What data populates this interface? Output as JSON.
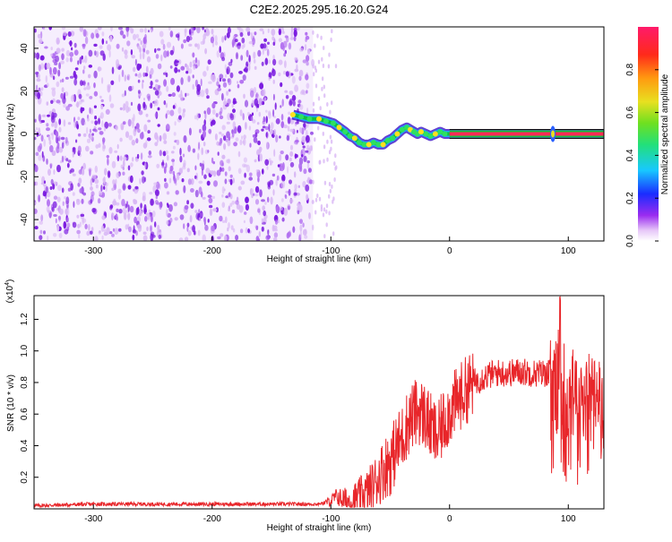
{
  "title": "C2E2.2025.295.16.20.G24",
  "colors": {
    "axis": "#000000",
    "snr_line": "#e8262a",
    "spectrum_light": "#d9b8f5",
    "spectrum_dark": "#7a1ae0",
    "track_center": "#ff2a55",
    "track_edge": "#10c040"
  },
  "chart_data": [
    {
      "type": "heatmap",
      "name": "spectrogram",
      "xlabel": "Height of straight line (km)",
      "ylabel": "Frequency (Hz)",
      "xlim": [
        -350,
        130
      ],
      "ylim": [
        -50,
        50
      ],
      "xticks": [
        -300,
        -200,
        -100,
        0,
        100
      ],
      "xtick_labels": [
        "-300",
        "-200",
        "-100",
        "0",
        "100"
      ],
      "yticks": [
        -40,
        -20,
        0,
        20,
        40
      ],
      "ytick_labels": [
        "-40",
        "-20",
        "0",
        "20",
        "40"
      ],
      "noise_region_x": [
        -350,
        -115
      ],
      "sparse_noise_x": [
        -115,
        -95
      ],
      "signal_track": {
        "x": [
          -132,
          -125,
          -118,
          -110,
          -104,
          -98,
          -93,
          -88,
          -84,
          -80,
          -76,
          -72,
          -68,
          -64,
          -60,
          -56,
          -52,
          -48,
          -44,
          -40,
          -36,
          -33,
          -30,
          -27,
          -24,
          -20,
          -16,
          -12,
          -8,
          -4,
          0,
          130
        ],
        "y": [
          9,
          8,
          7,
          7,
          6,
          5,
          3,
          1,
          -1,
          -2,
          -4,
          -5,
          -5,
          -4,
          -5,
          -5,
          -3,
          -2,
          0,
          2,
          3,
          2,
          1,
          0,
          1,
          0,
          -1,
          0,
          1,
          0,
          0,
          0
        ]
      },
      "spike": {
        "x": 87,
        "y": 0
      },
      "colorbar": {
        "label": "Normalized spectral amplitude",
        "range": [
          0,
          1
        ],
        "ticks": [
          0.0,
          0.2,
          0.4,
          0.6,
          0.8
        ],
        "tick_labels": [
          "0.0",
          "0.2",
          "0.4",
          "0.6",
          "0.8"
        ]
      }
    },
    {
      "type": "line",
      "name": "snr",
      "xlabel": "Height of straight line (km)",
      "ylabel": "SNR (10 * v/v)",
      "multiplier": "(x10",
      "multiplier_exp": "4",
      "multiplier_close": ")",
      "xlim": [
        -350,
        130
      ],
      "ylim": [
        0,
        1.35
      ],
      "xticks": [
        -300,
        -200,
        -100,
        0,
        100
      ],
      "xtick_labels": [
        "-300",
        "-200",
        "-100",
        "0",
        "100"
      ],
      "yticks": [
        0.2,
        0.4,
        0.6,
        0.8,
        1.0,
        1.2
      ],
      "ytick_labels": [
        "0.2",
        "0.4",
        "0.6",
        "0.8",
        "1.0",
        "1.2"
      ],
      "series": [
        {
          "name": "SNR",
          "x": [
            -350,
            -300,
            -250,
            -200,
            -150,
            -110,
            -100,
            -95,
            -90,
            -85,
            -80,
            -75,
            -70,
            -65,
            -60,
            -55,
            -50,
            -45,
            -40,
            -35,
            -30,
            -25,
            -20,
            -15,
            -10,
            -5,
            0,
            10,
            20,
            30,
            40,
            50,
            60,
            70,
            80,
            85,
            90,
            93,
            95,
            100,
            110,
            120,
            130
          ],
          "y": [
            0.02,
            0.03,
            0.03,
            0.03,
            0.03,
            0.03,
            0.05,
            0.08,
            0.06,
            0.05,
            0.06,
            0.08,
            0.1,
            0.14,
            0.2,
            0.26,
            0.3,
            0.38,
            0.45,
            0.55,
            0.6,
            0.62,
            0.58,
            0.5,
            0.45,
            0.55,
            0.62,
            0.72,
            0.8,
            0.84,
            0.86,
            0.86,
            0.87,
            0.86,
            0.86,
            0.87,
            0.86,
            1.0,
            0.85,
            0.8,
            0.78,
            0.76,
            0.75
          ]
        }
      ]
    }
  ]
}
